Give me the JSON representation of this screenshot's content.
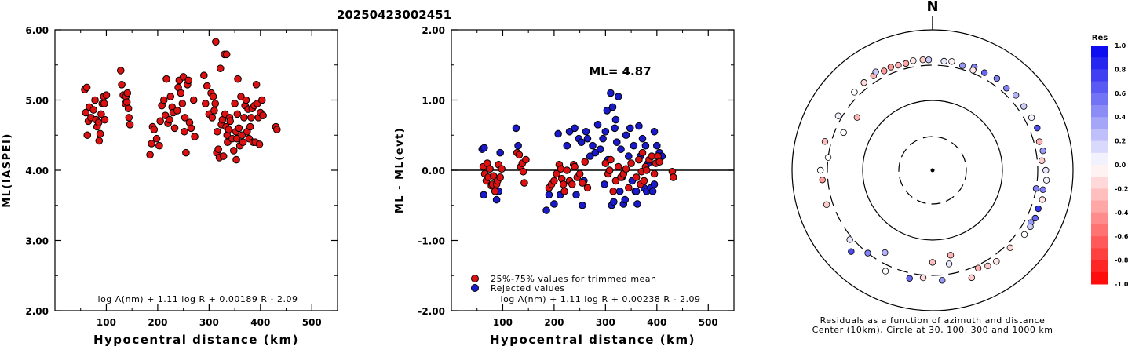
{
  "figure": {
    "title": "20250423002451"
  },
  "chart_data": [
    {
      "type": "scatter",
      "name": "ml-vs-distance",
      "xlabel": "Hypocentral distance (km)",
      "ylabel": "ML(IASPEI)",
      "xlim": [
        0,
        550
      ],
      "ylim": [
        2.0,
        6.0
      ],
      "x_ticks": [
        "100",
        "200",
        "300",
        "400",
        "500"
      ],
      "y_ticks": [
        "2.00",
        "3.00",
        "4.00",
        "5.00",
        "6.00"
      ],
      "formula": "log A(nm) + 1.11 log R + 0.00189 R - 2.09",
      "grid": false,
      "point_color": "#dd1111",
      "points": [
        [
          58,
          5.15
        ],
        [
          62,
          5.18
        ],
        [
          60,
          4.82
        ],
        [
          65,
          4.7
        ],
        [
          63,
          4.5
        ],
        [
          67,
          4.9
        ],
        [
          70,
          4.75
        ],
        [
          75,
          4.86
        ],
        [
          78,
          5.0
        ],
        [
          80,
          4.72
        ],
        [
          82,
          4.62
        ],
        [
          85,
          4.68
        ],
        [
          86,
          4.42
        ],
        [
          88,
          4.52
        ],
        [
          90,
          4.8
        ],
        [
          92,
          4.95
        ],
        [
          95,
          5.05
        ],
        [
          97,
          4.72
        ],
        [
          100,
          5.07
        ],
        [
          96,
          4.95
        ],
        [
          128,
          5.42
        ],
        [
          130,
          5.22
        ],
        [
          133,
          5.07
        ],
        [
          137,
          4.95
        ],
        [
          138,
          5.05
        ],
        [
          140,
          4.97
        ],
        [
          143,
          4.88
        ],
        [
          144,
          4.75
        ],
        [
          146,
          4.65
        ],
        [
          141,
          5.1
        ],
        [
          185,
          4.22
        ],
        [
          188,
          4.38
        ],
        [
          190,
          4.62
        ],
        [
          193,
          4.58
        ],
        [
          198,
          4.45
        ],
        [
          203,
          4.35
        ],
        [
          205,
          4.7
        ],
        [
          208,
          4.92
        ],
        [
          212,
          5.0
        ],
        [
          215,
          4.78
        ],
        [
          217,
          5.3
        ],
        [
          220,
          4.67
        ],
        [
          223,
          4.72
        ],
        [
          225,
          5.05
        ],
        [
          228,
          4.9
        ],
        [
          230,
          4.82
        ],
        [
          233,
          4.6
        ],
        [
          238,
          4.85
        ],
        [
          240,
          5.18
        ],
        [
          242,
          5.28
        ],
        [
          245,
          5.1
        ],
        [
          248,
          4.95
        ],
        [
          250,
          5.33
        ],
        [
          252,
          4.55
        ],
        [
          253,
          4.75
        ],
        [
          255,
          4.25
        ],
        [
          258,
          5.22
        ],
        [
          260,
          5.28
        ],
        [
          262,
          4.68
        ],
        [
          265,
          4.6
        ],
        [
          270,
          5.0
        ],
        [
          272,
          4.48
        ],
        [
          290,
          5.35
        ],
        [
          293,
          4.95
        ],
        [
          296,
          5.2
        ],
        [
          300,
          4.8
        ],
        [
          304,
          5.1
        ],
        [
          306,
          4.75
        ],
        [
          308,
          5.05
        ],
        [
          310,
          4.85
        ],
        [
          312,
          4.95
        ],
        [
          313,
          5.83
        ],
        [
          315,
          4.25
        ],
        [
          316,
          4.55
        ],
        [
          318,
          4.3
        ],
        [
          320,
          4.18
        ],
        [
          322,
          5.45
        ],
        [
          324,
          4.65
        ],
        [
          326,
          4.72
        ],
        [
          328,
          4.2
        ],
        [
          330,
          5.65
        ],
        [
          331,
          4.8
        ],
        [
          333,
          4.62
        ],
        [
          334,
          5.65
        ],
        [
          335,
          4.5
        ],
        [
          336,
          4.4
        ],
        [
          338,
          4.58
        ],
        [
          340,
          4.75
        ],
        [
          341,
          4.7
        ],
        [
          345,
          4.45
        ],
        [
          348,
          4.28
        ],
        [
          350,
          4.95
        ],
        [
          352,
          4.55
        ],
        [
          353,
          4.15
        ],
        [
          354,
          4.45
        ],
        [
          355,
          4.8
        ],
        [
          356,
          5.3
        ],
        [
          358,
          4.6
        ],
        [
          360,
          4.35
        ],
        [
          362,
          5.05
        ],
        [
          364,
          4.5
        ],
        [
          366,
          4.4
        ],
        [
          368,
          4.75
        ],
        [
          370,
          4.92
        ],
        [
          372,
          5.0
        ],
        [
          374,
          4.55
        ],
        [
          376,
          4.87
        ],
        [
          378,
          4.45
        ],
        [
          380,
          4.62
        ],
        [
          382,
          4.75
        ],
        [
          384,
          4.88
        ],
        [
          386,
          4.4
        ],
        [
          388,
          4.92
        ],
        [
          390,
          4.4
        ],
        [
          392,
          5.22
        ],
        [
          394,
          4.95
        ],
        [
          396,
          4.75
        ],
        [
          398,
          4.37
        ],
        [
          400,
          4.82
        ],
        [
          403,
          5.0
        ],
        [
          405,
          4.78
        ],
        [
          430,
          4.62
        ],
        [
          432,
          4.58
        ]
      ]
    },
    {
      "type": "scatter",
      "name": "residual-vs-distance",
      "xlabel": "Hypocentral distance (km)",
      "ylabel": "ML - ML(evt)",
      "xlim": [
        0,
        550
      ],
      "ylim": [
        -2.0,
        2.0
      ],
      "x_ticks": [
        "100",
        "200",
        "300",
        "400",
        "500"
      ],
      "y_ticks": [
        "-2.00",
        "-1.00",
        "0.00",
        "1.00",
        "2.00"
      ],
      "annotation": "ML= 4.87",
      "formula": "log A(nm) + 1.11 log R + 0.00238 R - 2.09",
      "legend": [
        {
          "label": "25%-75% values for trimmed mean",
          "color": "#dd1111"
        },
        {
          "label": "Rejected values",
          "color": "#1a1acc"
        }
      ],
      "reference_line": 0.0,
      "grid": false,
      "accepted": [
        [
          62,
          0.05
        ],
        [
          65,
          -0.05
        ],
        [
          68,
          -0.15
        ],
        [
          70,
          0.1
        ],
        [
          72,
          -0.1
        ],
        [
          75,
          0.02
        ],
        [
          78,
          -0.22
        ],
        [
          80,
          -0.2
        ],
        [
          82,
          -0.08
        ],
        [
          85,
          -0.3
        ],
        [
          88,
          -0.2
        ],
        [
          90,
          -0.15
        ],
        [
          92,
          0.08
        ],
        [
          95,
          -0.1
        ],
        [
          98,
          0.02
        ],
        [
          128,
          0.25
        ],
        [
          132,
          0.22
        ],
        [
          135,
          0.05
        ],
        [
          138,
          0.1
        ],
        [
          140,
          -0.02
        ],
        [
          142,
          -0.18
        ],
        [
          145,
          0.15
        ],
        [
          190,
          -0.25
        ],
        [
          195,
          -0.2
        ],
        [
          200,
          -0.15
        ],
        [
          205,
          -0.05
        ],
        [
          210,
          0.08
        ],
        [
          213,
          0.02
        ],
        [
          215,
          -0.12
        ],
        [
          218,
          -0.2
        ],
        [
          220,
          -0.3
        ],
        [
          225,
          0.0
        ],
        [
          230,
          -0.15
        ],
        [
          235,
          -0.2
        ],
        [
          238,
          0.08
        ],
        [
          240,
          0.05
        ],
        [
          245,
          -0.1
        ],
        [
          250,
          -0.05
        ],
        [
          255,
          -0.18
        ],
        [
          260,
          0.12
        ],
        [
          265,
          -0.25
        ],
        [
          300,
          0.1
        ],
        [
          305,
          -0.05
        ],
        [
          308,
          0.0
        ],
        [
          310,
          0.15
        ],
        [
          315,
          -0.3
        ],
        [
          320,
          -0.15
        ],
        [
          325,
          0.05
        ],
        [
          330,
          -0.1
        ],
        [
          335,
          -0.05
        ],
        [
          340,
          0.02
        ],
        [
          345,
          -0.25
        ],
        [
          350,
          0.1
        ],
        [
          360,
          -0.1
        ],
        [
          365,
          0.15
        ],
        [
          368,
          -0.2
        ],
        [
          370,
          -0.02
        ],
        [
          372,
          0.25
        ],
        [
          375,
          -0.15
        ],
        [
          378,
          0.05
        ],
        [
          380,
          0.0
        ],
        [
          385,
          0.15
        ],
        [
          390,
          0.2
        ],
        [
          395,
          -0.05
        ],
        [
          398,
          0.1
        ],
        [
          402,
          0.2
        ],
        [
          405,
          0.12
        ],
        [
          430,
          -0.02
        ],
        [
          432,
          -0.1
        ]
      ],
      "rejected": [
        [
          60,
          0.3
        ],
        [
          64,
          0.32
        ],
        [
          63,
          -0.35
        ],
        [
          88,
          -0.42
        ],
        [
          92,
          -0.3
        ],
        [
          95,
          0.25
        ],
        [
          126,
          0.6
        ],
        [
          130,
          0.35
        ],
        [
          185,
          -0.57
        ],
        [
          190,
          -0.35
        ],
        [
          200,
          -0.48
        ],
        [
          208,
          0.52
        ],
        [
          212,
          -0.35
        ],
        [
          225,
          0.35
        ],
        [
          230,
          0.55
        ],
        [
          240,
          0.6
        ],
        [
          243,
          -0.35
        ],
        [
          248,
          0.45
        ],
        [
          253,
          0.4
        ],
        [
          255,
          -0.5
        ],
        [
          258,
          -0.15
        ],
        [
          262,
          0.55
        ],
        [
          265,
          0.45
        ],
        [
          270,
          0.2
        ],
        [
          275,
          0.35
        ],
        [
          280,
          0.25
        ],
        [
          285,
          0.65
        ],
        [
          290,
          0.3
        ],
        [
          295,
          0.45
        ],
        [
          298,
          -0.2
        ],
        [
          300,
          0.55
        ],
        [
          303,
          0.85
        ],
        [
          305,
          0.15
        ],
        [
          310,
          1.1
        ],
        [
          312,
          -0.5
        ],
        [
          314,
          0.9
        ],
        [
          316,
          -0.45
        ],
        [
          318,
          0.6
        ],
        [
          320,
          0.72
        ],
        [
          322,
          0.4
        ],
        [
          325,
          1.05
        ],
        [
          328,
          -0.3
        ],
        [
          330,
          0.3
        ],
        [
          332,
          -0.1
        ],
        [
          335,
          -0.48
        ],
        [
          338,
          -0.42
        ],
        [
          340,
          0.5
        ],
        [
          345,
          0.2
        ],
        [
          348,
          0.6
        ],
        [
          352,
          -0.15
        ],
        [
          355,
          0.35
        ],
        [
          358,
          -0.3
        ],
        [
          360,
          -0.3
        ],
        [
          362,
          -0.48
        ],
        [
          365,
          0.63
        ],
        [
          368,
          0.2
        ],
        [
          372,
          0.45
        ],
        [
          375,
          -0.25
        ],
        [
          378,
          0.35
        ],
        [
          380,
          -0.3
        ],
        [
          383,
          0.1
        ],
        [
          388,
          -0.25
        ],
        [
          392,
          -0.3
        ],
        [
          395,
          0.55
        ],
        [
          400,
          0.35
        ],
        [
          405,
          0.25
        ],
        [
          410,
          0.2
        ],
        [
          395,
          -0.2
        ]
      ]
    },
    {
      "type": "scatter",
      "name": "azimuth-residual-map",
      "north_label": "N",
      "caption_line1": "Residuals as a function of azimuth and distance",
      "caption_line2": "Center (10km), Circle at 30, 100, 300 and 1000 km",
      "colorbar_title": "Res",
      "colorbar_ticks": [
        "1.0",
        "0.8",
        "0.6",
        "0.4",
        "0.2",
        "0.0",
        "-0.2",
        "-0.4",
        "-0.6",
        "-0.8",
        "-1.0"
      ],
      "colorbar_range": [
        -1.0,
        1.0
      ],
      "positive_color": "#0000ee",
      "negative_color": "#ff0000",
      "neutral_color": "#ffffff",
      "stations": [
        [
          6,
          350,
          0.1
        ],
        [
          10,
          360,
          -0.05
        ],
        [
          16,
          340,
          0.4
        ],
        [
          22,
          370,
          0.5
        ],
        [
          28,
          360,
          0.6
        ],
        [
          35,
          380,
          0.5
        ],
        [
          42,
          360,
          0.5
        ],
        [
          48,
          380,
          0.3
        ],
        [
          55,
          370,
          0.2
        ],
        [
          62,
          380,
          0.05
        ],
        [
          68,
          390,
          0.7
        ],
        [
          75,
          360,
          -0.3
        ],
        [
          80,
          380,
          0.4
        ],
        [
          85,
          350,
          -0.2
        ],
        [
          90,
          395,
          0.1
        ],
        [
          95,
          410,
          0.05
        ],
        [
          100,
          380,
          0.5
        ],
        [
          105,
          400,
          -0.1
        ],
        [
          110,
          385,
          0.8
        ],
        [
          115,
          395,
          0.6
        ],
        [
          118,
          370,
          0.4
        ],
        [
          120,
          390,
          0.2
        ],
        [
          125,
          380,
          0.0
        ],
        [
          135,
          350,
          -0.15
        ],
        [
          145,
          370,
          -0.1
        ],
        [
          150,
          360,
          -0.2
        ],
        [
          155,
          330,
          -0.3
        ],
        [
          160,
          410,
          -0.2
        ],
        [
          168,
          170,
          -0.3
        ],
        [
          170,
          220,
          0.1
        ],
        [
          175,
          360,
          0.4
        ],
        [
          180,
          200,
          -0.25
        ],
        [
          185,
          330,
          -0.15
        ],
        [
          192,
          360,
          0.6
        ],
        [
          205,
          370,
          0.0
        ],
        [
          210,
          220,
          0.3
        ],
        [
          218,
          300,
          0.5
        ],
        [
          225,
          420,
          0.7
        ],
        [
          230,
          330,
          0.1
        ],
        [
          252,
          370,
          -0.2
        ],
        [
          265,
          360,
          -0.4
        ],
        [
          270,
          380,
          0.0
        ],
        [
          277,
          300,
          0.0
        ],
        [
          285,
          370,
          -0.25
        ],
        [
          293,
          230,
          0.0
        ],
        [
          300,
          340,
          0.05
        ],
        [
          305,
          200,
          -0.3
        ],
        [
          315,
          360,
          0.0
        ],
        [
          322,
          370,
          -0.15
        ],
        [
          328,
          370,
          -0.3
        ],
        [
          334,
          360,
          -0.4
        ],
        [
          338,
          370,
          -0.4
        ],
        [
          342,
          360,
          -0.3
        ],
        [
          346,
          355,
          -0.35
        ],
        [
          350,
          370,
          -0.1
        ],
        [
          355,
          365,
          -0.2
        ],
        [
          358,
          360,
          0.2
        ],
        [
          330,
          400,
          0.2
        ],
        [
          22,
          330,
          -0.1
        ],
        [
          100,
          300,
          0.5
        ]
      ]
    }
  ]
}
